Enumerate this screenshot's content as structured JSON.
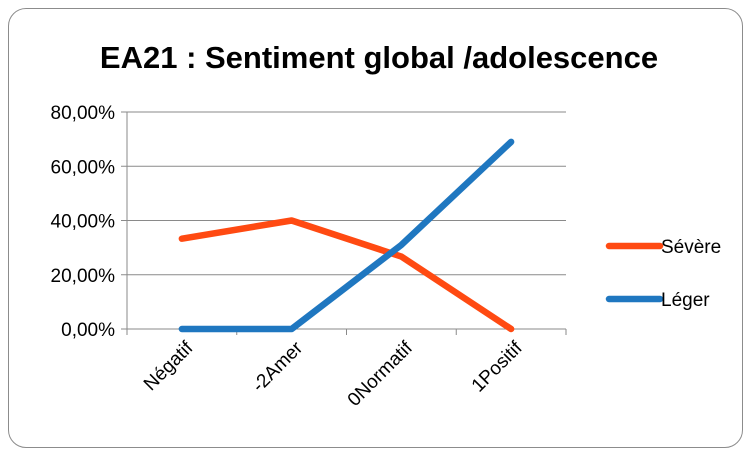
{
  "chart_data": {
    "type": "line",
    "title": "EA21 : Sentiment global /adolescence",
    "categories": [
      "Négatif",
      "-2Amer",
      "0Normatif",
      "1Positif"
    ],
    "y_tick_labels": [
      "0,00%",
      "20,00%",
      "40,00%",
      "60,00%",
      "80,00%"
    ],
    "y_ticks": [
      0,
      20,
      40,
      60,
      80
    ],
    "ylim": [
      0,
      80
    ],
    "grid": true,
    "legend_position": "right",
    "series": [
      {
        "name": "Sévère",
        "color": "#ff4a12",
        "values": [
          33.3,
          40.0,
          26.7,
          0.0
        ]
      },
      {
        "name": "Léger",
        "color": "#1f77c0",
        "values": [
          0.0,
          0.0,
          31.0,
          69.0
        ]
      }
    ]
  }
}
